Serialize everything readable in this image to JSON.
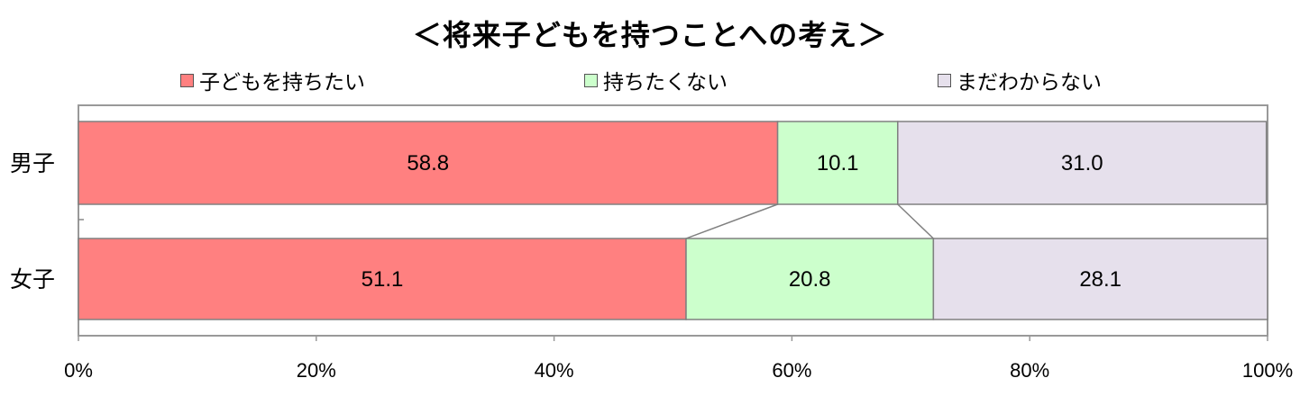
{
  "chart_data": {
    "type": "bar",
    "orientation": "horizontal",
    "stacked": "percent",
    "title": "＜将来子どもを持つことへの考え＞",
    "categories": [
      "男子",
      "女子"
    ],
    "series": [
      {
        "name": "子どもを持ちたい",
        "values": [
          58.8,
          51.1
        ],
        "color": "#ff8080"
      },
      {
        "name": "持ちたくない",
        "values": [
          10.1,
          20.8
        ],
        "color": "#ccffcc"
      },
      {
        "name": "まだわからない",
        "values": [
          31.0,
          28.1
        ],
        "color": "#e6e0ec"
      }
    ],
    "value_labels": [
      [
        "58.8",
        "51.1"
      ],
      [
        "10.1",
        "20.8"
      ],
      [
        "31.0",
        "28.1"
      ]
    ],
    "xlim": [
      0,
      100
    ],
    "x_ticks": [
      "0%",
      "20%",
      "40%",
      "60%",
      "80%",
      "100%"
    ],
    "legend_position": "top",
    "series_lines": true,
    "grid": false
  }
}
